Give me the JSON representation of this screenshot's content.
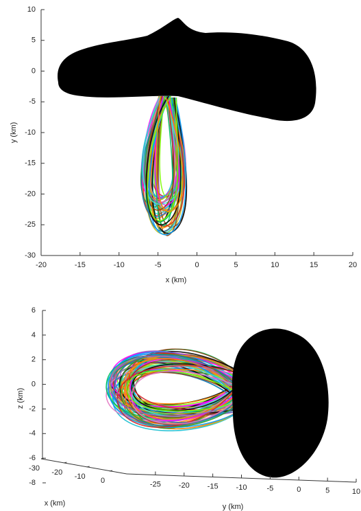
{
  "chart_data": [
    {
      "type": "plot2d",
      "xlabel": "x (km)",
      "ylabel": "y (km)",
      "xlim": [
        -20,
        20
      ],
      "xticks": [
        -20,
        -15,
        -10,
        -5,
        0,
        5,
        10,
        15,
        20
      ],
      "ylim": [
        -30,
        10
      ],
      "yticks": [
        -30,
        -25,
        -20,
        -15,
        -10,
        -5,
        0,
        5,
        10
      ]
    },
    {
      "type": "plot3d",
      "xlabel": "x (km)",
      "ylabel": "y (km)",
      "zlabel": "z (km)",
      "xlim": [
        -30,
        0
      ],
      "xticks": [
        -30,
        -20,
        -10,
        0
      ],
      "ylim": [
        -30,
        10
      ],
      "yticks": [
        -25,
        -20,
        -15,
        -10,
        -5,
        0,
        5,
        10
      ],
      "zlim": [
        -8,
        6
      ],
      "zticks": [
        -8,
        -6,
        -4,
        -2,
        0,
        2,
        4,
        6
      ]
    }
  ]
}
